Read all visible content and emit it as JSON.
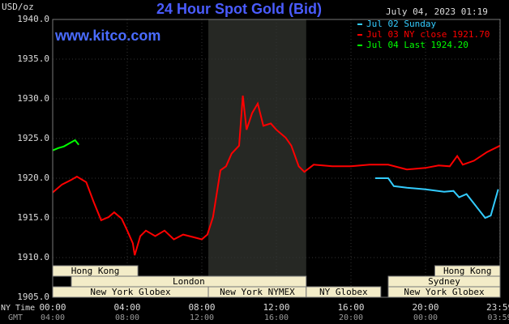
{
  "chart_data": {
    "type": "line",
    "title": "24 Hour Spot Gold (Bid)",
    "subtitle": "July 04, 2023 01:19",
    "watermark": "www.kitco.com",
    "y_label": "USD/oz",
    "x_label": "NY Time",
    "x2_label": "GMT",
    "xlim": [
      0,
      24
    ],
    "ylim": [
      1905,
      1940
    ],
    "xticks": [
      {
        "value": 0,
        "label": "00:00"
      },
      {
        "value": 4,
        "label": "04:00"
      },
      {
        "value": 8,
        "label": "08:00"
      },
      {
        "value": 12,
        "label": "12:00"
      },
      {
        "value": 16,
        "label": "16:00"
      },
      {
        "value": 20,
        "label": "20:00"
      },
      {
        "value": 23.983,
        "label": "23:59"
      }
    ],
    "gmt_labels": [
      "04:00",
      "08:00",
      "12:00",
      "16:00",
      "20:00",
      "00:00",
      "03:59"
    ],
    "yticks": [
      {
        "value": 1905,
        "label": "1905.0"
      },
      {
        "value": 1910,
        "label": "1910.0"
      },
      {
        "value": 1915,
        "label": "1915.0"
      },
      {
        "value": 1920,
        "label": "1920.0"
      },
      {
        "value": 1925,
        "label": "1925.0"
      },
      {
        "value": 1930,
        "label": "1930.0"
      },
      {
        "value": 1935,
        "label": "1935.0"
      },
      {
        "value": 1940,
        "label": "1940.0"
      }
    ],
    "grid": true,
    "highlight": [
      8.35,
      13.6
    ],
    "sessions": [
      [
        {
          "label": "Hong Kong",
          "start": 0,
          "end": 4.57
        },
        {
          "label": "Hong Kong",
          "start": 20.5,
          "end": 24
        }
      ],
      [
        {
          "label": "London",
          "start": 1,
          "end": 13.6
        },
        {
          "label": "Sydney",
          "start": 18,
          "end": 24
        }
      ],
      [
        {
          "label": "New York Globex",
          "start": 0,
          "end": 8.35
        },
        {
          "label": "New York NYMEX",
          "start": 8.35,
          "end": 13.6
        },
        {
          "label": "NY Globex",
          "start": 13.6,
          "end": 17.6
        },
        {
          "label": "New York Globex",
          "start": 18,
          "end": 24
        }
      ]
    ],
    "series": [
      {
        "name": "Jul 02 Sunday",
        "color": "#33ccff",
        "x": [
          17.3,
          18,
          18.3,
          19,
          20,
          21,
          21.5,
          21.8,
          22.2,
          22.7,
          23.2,
          23.5,
          23.9
        ],
        "values": [
          1920,
          1920,
          1919,
          1918.8,
          1918.6,
          1918.3,
          1918.4,
          1917.6,
          1918,
          1916.5,
          1915,
          1915.3,
          1918.6
        ]
      },
      {
        "name": "Jul 03 NY close 1921.70",
        "color": "#ff0000",
        "x": [
          0,
          0.5,
          1,
          1.3,
          1.8,
          2.2,
          2.6,
          3,
          3.3,
          3.7,
          4,
          4.3,
          4.4,
          4.7,
          5,
          5.5,
          6,
          6.5,
          7,
          7.5,
          8,
          8.3,
          8.6,
          9,
          9.3,
          9.6,
          10,
          10.2,
          10.4,
          10.7,
          11,
          11.3,
          11.7,
          12,
          12.5,
          12.8,
          13.2,
          13.5,
          14,
          15,
          16,
          17,
          18,
          19,
          20,
          20.7,
          21.3,
          21.7,
          22,
          22.6,
          23.3,
          24
        ],
        "values": [
          1918.2,
          1919.2,
          1919.8,
          1920.2,
          1919.5,
          1917,
          1914.7,
          1915.1,
          1915.7,
          1914.9,
          1913.4,
          1911.8,
          1910.3,
          1912.7,
          1913.4,
          1912.7,
          1913.4,
          1912.3,
          1912.9,
          1912.6,
          1912.3,
          1912.9,
          1915.1,
          1921,
          1921.5,
          1923.1,
          1924.1,
          1930.4,
          1926.1,
          1928.2,
          1929.4,
          1926.6,
          1926.9,
          1926.1,
          1925.1,
          1924.1,
          1921.5,
          1920.8,
          1921.7,
          1921.5,
          1921.5,
          1921.7,
          1921.7,
          1921.1,
          1921.3,
          1921.6,
          1921.5,
          1922.8,
          1921.7,
          1922.2,
          1923.3,
          1924.1
        ]
      },
      {
        "name": "Jul 04 Last 1924.20",
        "color": "#00ff00",
        "x": [
          0,
          0.3,
          0.6,
          0.9,
          1.2,
          1.4
        ],
        "values": [
          1923.5,
          1923.8,
          1924,
          1924.4,
          1924.8,
          1924.2
        ]
      }
    ]
  }
}
